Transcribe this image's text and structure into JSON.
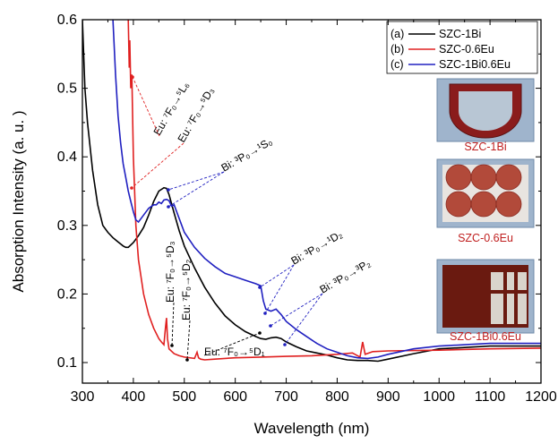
{
  "chart_data": {
    "type": "line",
    "xlabel": "Wavelength (nm)",
    "ylabel": "Absorption Intensity (a. u. )",
    "xlim": [
      300,
      1200
    ],
    "ylim": [
      0.07,
      0.6
    ],
    "xticks": [
      "300",
      "400",
      "500",
      "600",
      "700",
      "800",
      "900",
      "1000",
      "1100",
      "1200"
    ],
    "yticks": [
      "0.1",
      "0.2",
      "0.3",
      "0.4",
      "0.5",
      "0.6"
    ],
    "ytick_values": [
      0.1,
      0.2,
      0.3,
      0.4,
      0.5,
      0.6
    ],
    "xtick_values": [
      300,
      400,
      500,
      600,
      700,
      800,
      900,
      1000,
      1100,
      1200
    ],
    "legend_position": "top-right",
    "legend": [
      {
        "tag": "(a)",
        "label": "SZC-1Bi"
      },
      {
        "tag": "(b)",
        "label": "SZC-0.6Eu"
      },
      {
        "tag": "(c)",
        "label": "SZC-1Bi0.6Eu"
      }
    ],
    "series": [
      {
        "name": "SZC-1Bi",
        "color": "#000000",
        "x": [
          300,
          305,
          310,
          320,
          330,
          340,
          350,
          360,
          370,
          380,
          385,
          390,
          400,
          410,
          420,
          430,
          440,
          450,
          460,
          465,
          470,
          480,
          490,
          500,
          520,
          540,
          560,
          580,
          600,
          620,
          640,
          650,
          660,
          670,
          680,
          690,
          700,
          720,
          740,
          760,
          780,
          800,
          820,
          840,
          860,
          880,
          900,
          950,
          1000,
          1050,
          1100,
          1150,
          1200
        ],
        "y": [
          0.6,
          0.5,
          0.45,
          0.38,
          0.33,
          0.3,
          0.29,
          0.282,
          0.276,
          0.27,
          0.268,
          0.268,
          0.275,
          0.285,
          0.297,
          0.315,
          0.335,
          0.35,
          0.355,
          0.354,
          0.345,
          0.318,
          0.292,
          0.27,
          0.238,
          0.21,
          0.187,
          0.168,
          0.155,
          0.145,
          0.138,
          0.135,
          0.134,
          0.136,
          0.137,
          0.135,
          0.13,
          0.123,
          0.117,
          0.114,
          0.111,
          0.107,
          0.104,
          0.103,
          0.103,
          0.102,
          0.105,
          0.113,
          0.12,
          0.122,
          0.124,
          0.124,
          0.124
        ]
      },
      {
        "name": "SZC-0.6Eu",
        "color": "#e02020",
        "x": [
          390,
          392,
          393,
          395,
          397,
          400,
          405,
          410,
          420,
          430,
          440,
          450,
          455,
          460,
          463,
          465,
          467,
          470,
          480,
          490,
          500,
          520,
          525,
          528,
          532,
          540,
          560,
          580,
          600,
          650,
          700,
          750,
          800,
          830,
          845,
          850,
          855,
          870,
          900,
          1000,
          1100,
          1200
        ],
        "y": [
          0.6,
          0.53,
          0.57,
          0.5,
          0.52,
          0.4,
          0.3,
          0.25,
          0.2,
          0.17,
          0.15,
          0.135,
          0.13,
          0.126,
          0.15,
          0.165,
          0.135,
          0.12,
          0.113,
          0.11,
          0.108,
          0.106,
          0.115,
          0.107,
          0.105,
          0.104,
          0.105,
          0.106,
          0.107,
          0.108,
          0.109,
          0.11,
          0.112,
          0.114,
          0.108,
          0.13,
          0.112,
          0.116,
          0.117,
          0.118,
          0.12,
          0.121
        ]
      },
      {
        "name": "SZC-1Bi0.6Eu",
        "color": "#2020c0",
        "x": [
          360,
          365,
          370,
          375,
          380,
          385,
          390,
          395,
          400,
          405,
          410,
          420,
          430,
          440,
          445,
          450,
          455,
          460,
          465,
          470,
          475,
          480,
          490,
          500,
          520,
          540,
          560,
          580,
          600,
          620,
          640,
          650,
          655,
          660,
          670,
          680,
          690,
          700,
          720,
          740,
          760,
          780,
          800,
          820,
          840,
          860,
          880,
          900,
          950,
          1000,
          1050,
          1100,
          1150,
          1200
        ],
        "y": [
          0.6,
          0.52,
          0.46,
          0.42,
          0.39,
          0.37,
          0.35,
          0.335,
          0.32,
          0.308,
          0.305,
          0.315,
          0.325,
          0.33,
          0.33,
          0.334,
          0.332,
          0.337,
          0.338,
          0.336,
          0.328,
          0.33,
          0.31,
          0.29,
          0.268,
          0.252,
          0.24,
          0.23,
          0.225,
          0.22,
          0.215,
          0.212,
          0.19,
          0.178,
          0.175,
          0.178,
          0.17,
          0.16,
          0.148,
          0.138,
          0.128,
          0.12,
          0.115,
          0.11,
          0.107,
          0.106,
          0.108,
          0.112,
          0.12,
          0.124,
          0.126,
          0.128,
          0.128,
          0.128
        ]
      }
    ],
    "annotations": [
      {
        "id": "eu-7f0-5l6",
        "text": "Eu: ⁷F₀→⁵L₆",
        "color": "#e02020"
      },
      {
        "id": "eu-7f0-5d3-top",
        "text": "Eu: ⁷F₀→⁵D₃",
        "color": "#e02020"
      },
      {
        "id": "bi-3p0-1s0",
        "text": "Bi: ³P₀→¹S₀",
        "color": "#2020c0"
      },
      {
        "id": "bi-3p0-1d2",
        "text": "Bi: ³P₀→¹D₂",
        "color": "#2020c0"
      },
      {
        "id": "bi-3p0-3p2",
        "text": "Bi: ³P₀→³P₂",
        "color": "#2020c0"
      },
      {
        "id": "eu-7f0-5d3-low",
        "text": "Eu: ⁷F₀→⁵D₃",
        "color": "#000000"
      },
      {
        "id": "eu-7f0-5d2",
        "text": "Eu: ⁷F₀→⁵D₂",
        "color": "#000000"
      },
      {
        "id": "eu-7f0-5d1",
        "text": "Eu: ⁷F₀→⁵D₁",
        "color": "#000000"
      }
    ],
    "photos": [
      {
        "label": "SZC-1Bi",
        "color": "#c02020"
      },
      {
        "label": "SZC-0.6Eu",
        "color": "#c02020"
      },
      {
        "label": "SZC-1Bi0.6Eu",
        "color": "#c02020"
      }
    ]
  }
}
